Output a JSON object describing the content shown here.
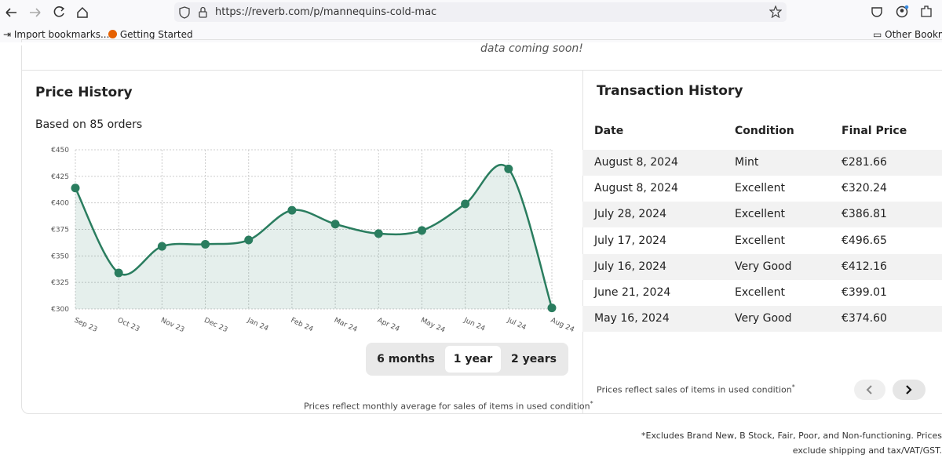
{
  "browser": {
    "url": "https://reverb.com/p/mannequins-cold-mac",
    "bookmarks": [
      "Import bookmarks...",
      "Getting Started"
    ],
    "other_bookmarks": "Other Bookmarks"
  },
  "page": {
    "top_note": "data coming soon!",
    "price_history": {
      "title": "Price History",
      "subtitle": "Based on 85 orders",
      "ranges": [
        "6 months",
        "1 year",
        "2 years"
      ],
      "selected_range": 1,
      "footnote": "Prices reflect monthly average for sales of items in used condition",
      "footnote_mark": "*"
    },
    "transaction_history": {
      "title": "Transaction History",
      "columns": [
        "Date",
        "Condition",
        "Final Price"
      ],
      "rows": [
        [
          "August 8, 2024",
          "Mint",
          "€281.66"
        ],
        [
          "August 8, 2024",
          "Excellent",
          "€320.24"
        ],
        [
          "July 28, 2024",
          "Excellent",
          "€386.81"
        ],
        [
          "July 17, 2024",
          "Excellent",
          "€496.65"
        ],
        [
          "July 16, 2024",
          "Very Good",
          "€412.16"
        ],
        [
          "June 21, 2024",
          "Excellent",
          "€399.01"
        ],
        [
          "May 16, 2024",
          "Very Good",
          "€374.60"
        ]
      ],
      "footnote": "Prices reflect sales of items in used condition",
      "footnote_mark": "*"
    },
    "disclaimer": "*Excludes Brand New, B Stock, Fair, Poor, and Non-functioning. Prices exclude shipping and tax/VAT/GST."
  },
  "chart_data": {
    "type": "area",
    "color": "#2a7d5f",
    "grid": true,
    "categories": [
      "Sep 23",
      "Oct 23",
      "Nov 23",
      "Dec 23",
      "Jan 24",
      "Feb 24",
      "Mar 24",
      "Apr 24",
      "May 24",
      "Jun 24",
      "Jul 24",
      "Aug 24"
    ],
    "values": [
      414,
      334,
      359,
      361,
      365,
      393,
      380,
      371,
      374,
      399,
      432,
      301
    ],
    "ylim": [
      300,
      450
    ],
    "yticks": [
      {
        "value": 300,
        "label": "€300"
      },
      {
        "value": 325,
        "label": "€325"
      },
      {
        "value": 350,
        "label": "€350"
      },
      {
        "value": 375,
        "label": "€375"
      },
      {
        "value": 400,
        "label": "€400"
      },
      {
        "value": 425,
        "label": "€425"
      },
      {
        "value": 450,
        "label": "€450"
      }
    ]
  }
}
